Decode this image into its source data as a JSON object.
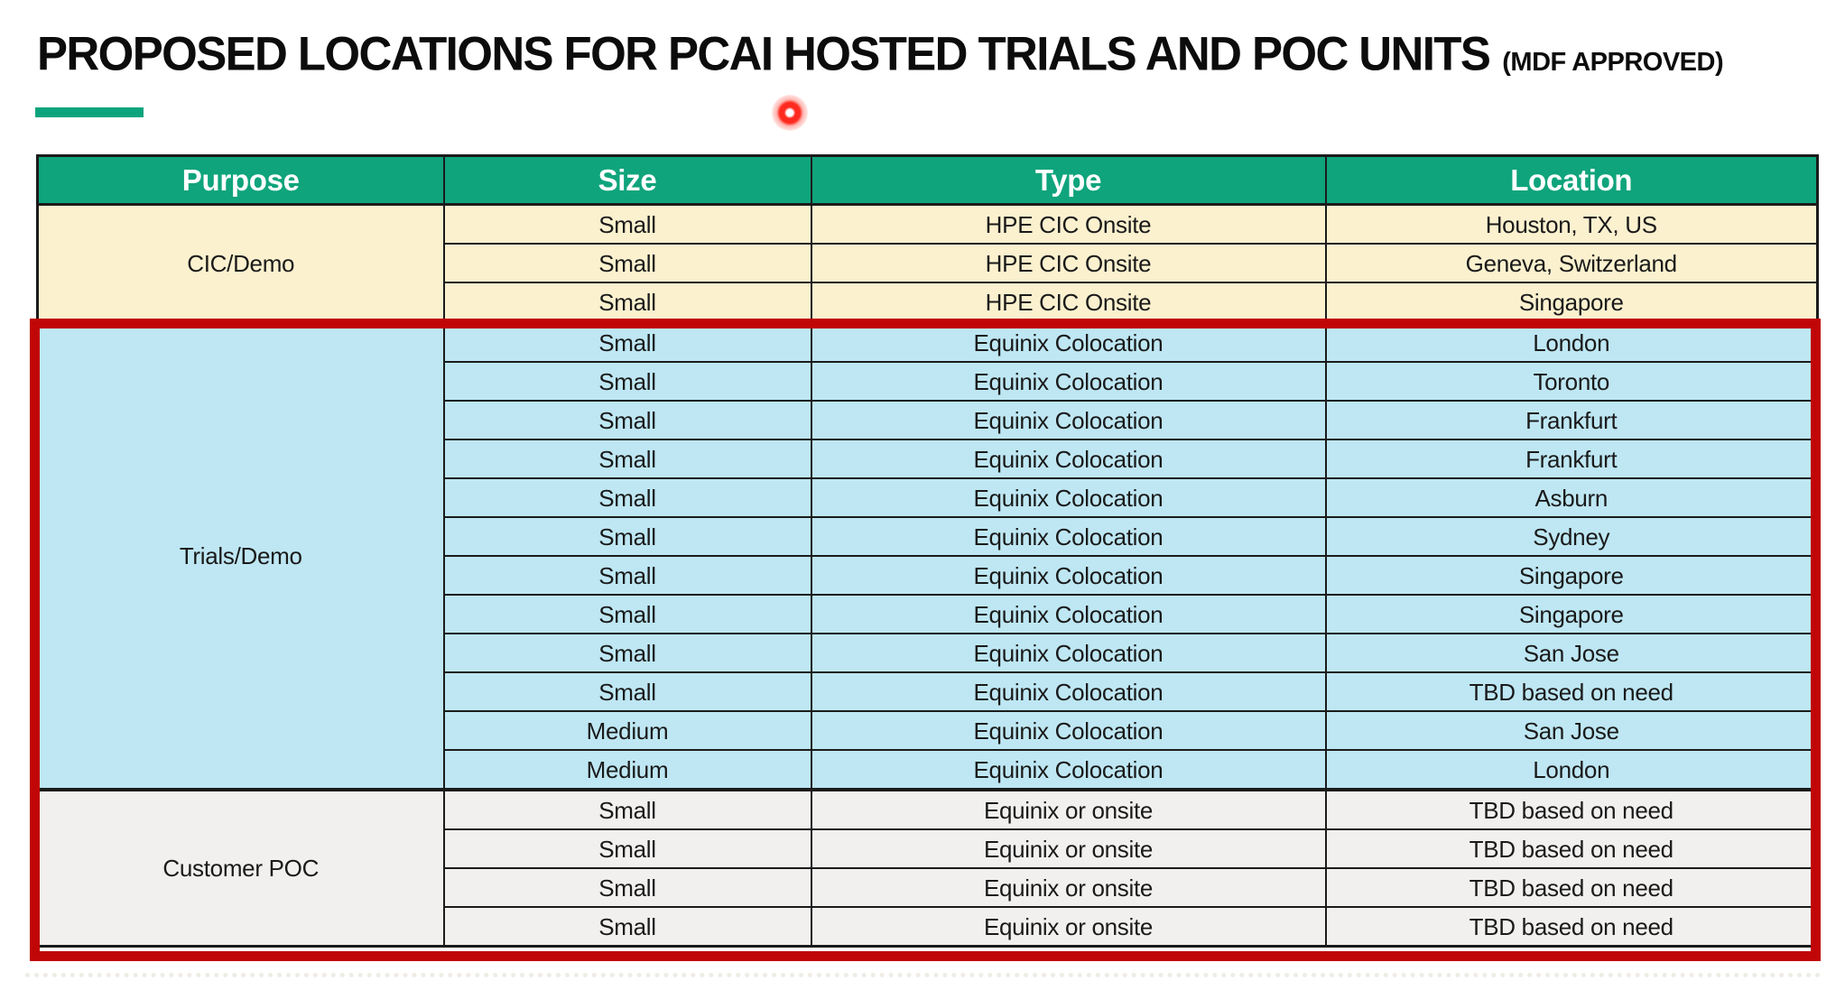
{
  "title": {
    "main": "PROPOSED LOCATIONS FOR PCAI HOSTED TRIALS AND POC UNITS",
    "suffix": "(MDF APPROVED)"
  },
  "colors": {
    "header_bg": "#0FA47C",
    "accent_green": "#0CA47D",
    "grid_border": "#1B1B1B",
    "highlight_border": "#C00606",
    "laser_red": "#FF2A1F",
    "cic_bg": "#FBF1CF",
    "trials_bg": "#BEE7F3",
    "poc_bg": "#F1F0EF"
  },
  "table": {
    "headers": [
      "Purpose",
      "Size",
      "Type",
      "Location"
    ],
    "sections": [
      {
        "purpose": "CIC/Demo",
        "bg": "#FBF1CF",
        "rows": [
          {
            "size": "Small",
            "type": "HPE CIC Onsite",
            "location": "Houston, TX, US"
          },
          {
            "size": "Small",
            "type": "HPE CIC Onsite",
            "location": "Geneva, Switzerland"
          },
          {
            "size": "Small",
            "type": "HPE CIC Onsite",
            "location": "Singapore"
          }
        ]
      },
      {
        "purpose": "Trials/Demo",
        "bg": "#BEE7F3",
        "rows": [
          {
            "size": "Small",
            "type": "Equinix Colocation",
            "location": "London"
          },
          {
            "size": "Small",
            "type": "Equinix Colocation",
            "location": "Toronto"
          },
          {
            "size": "Small",
            "type": "Equinix Colocation",
            "location": "Frankfurt"
          },
          {
            "size": "Small",
            "type": "Equinix Colocation",
            "location": "Frankfurt"
          },
          {
            "size": "Small",
            "type": "Equinix Colocation",
            "location": "Asburn"
          },
          {
            "size": "Small",
            "type": "Equinix Colocation",
            "location": "Sydney"
          },
          {
            "size": "Small",
            "type": "Equinix Colocation",
            "location": "Singapore"
          },
          {
            "size": "Small",
            "type": "Equinix Colocation",
            "location": "Singapore"
          },
          {
            "size": "Small",
            "type": "Equinix Colocation",
            "location": "San Jose"
          },
          {
            "size": "Small",
            "type": "Equinix Colocation",
            "location": "TBD based on need"
          },
          {
            "size": "Medium",
            "type": "Equinix Colocation",
            "location": "San Jose"
          },
          {
            "size": "Medium",
            "type": "Equinix Colocation",
            "location": "London"
          }
        ]
      },
      {
        "purpose": "Customer POC",
        "bg": "#F1F0EF",
        "rows": [
          {
            "size": "Small",
            "type": "Equinix or onsite",
            "location": "TBD based on need"
          },
          {
            "size": "Small",
            "type": "Equinix or onsite",
            "location": "TBD based on need"
          },
          {
            "size": "Small",
            "type": "Equinix or onsite",
            "location": "TBD based on need"
          },
          {
            "size": "Small",
            "type": "Equinix or onsite",
            "location": "TBD based on need"
          }
        ]
      }
    ],
    "highlighted_sections": [
      "Trials/Demo",
      "Customer POC"
    ]
  },
  "annotations": {
    "laser_pointer_dot": "red laser pointer dot below title"
  }
}
